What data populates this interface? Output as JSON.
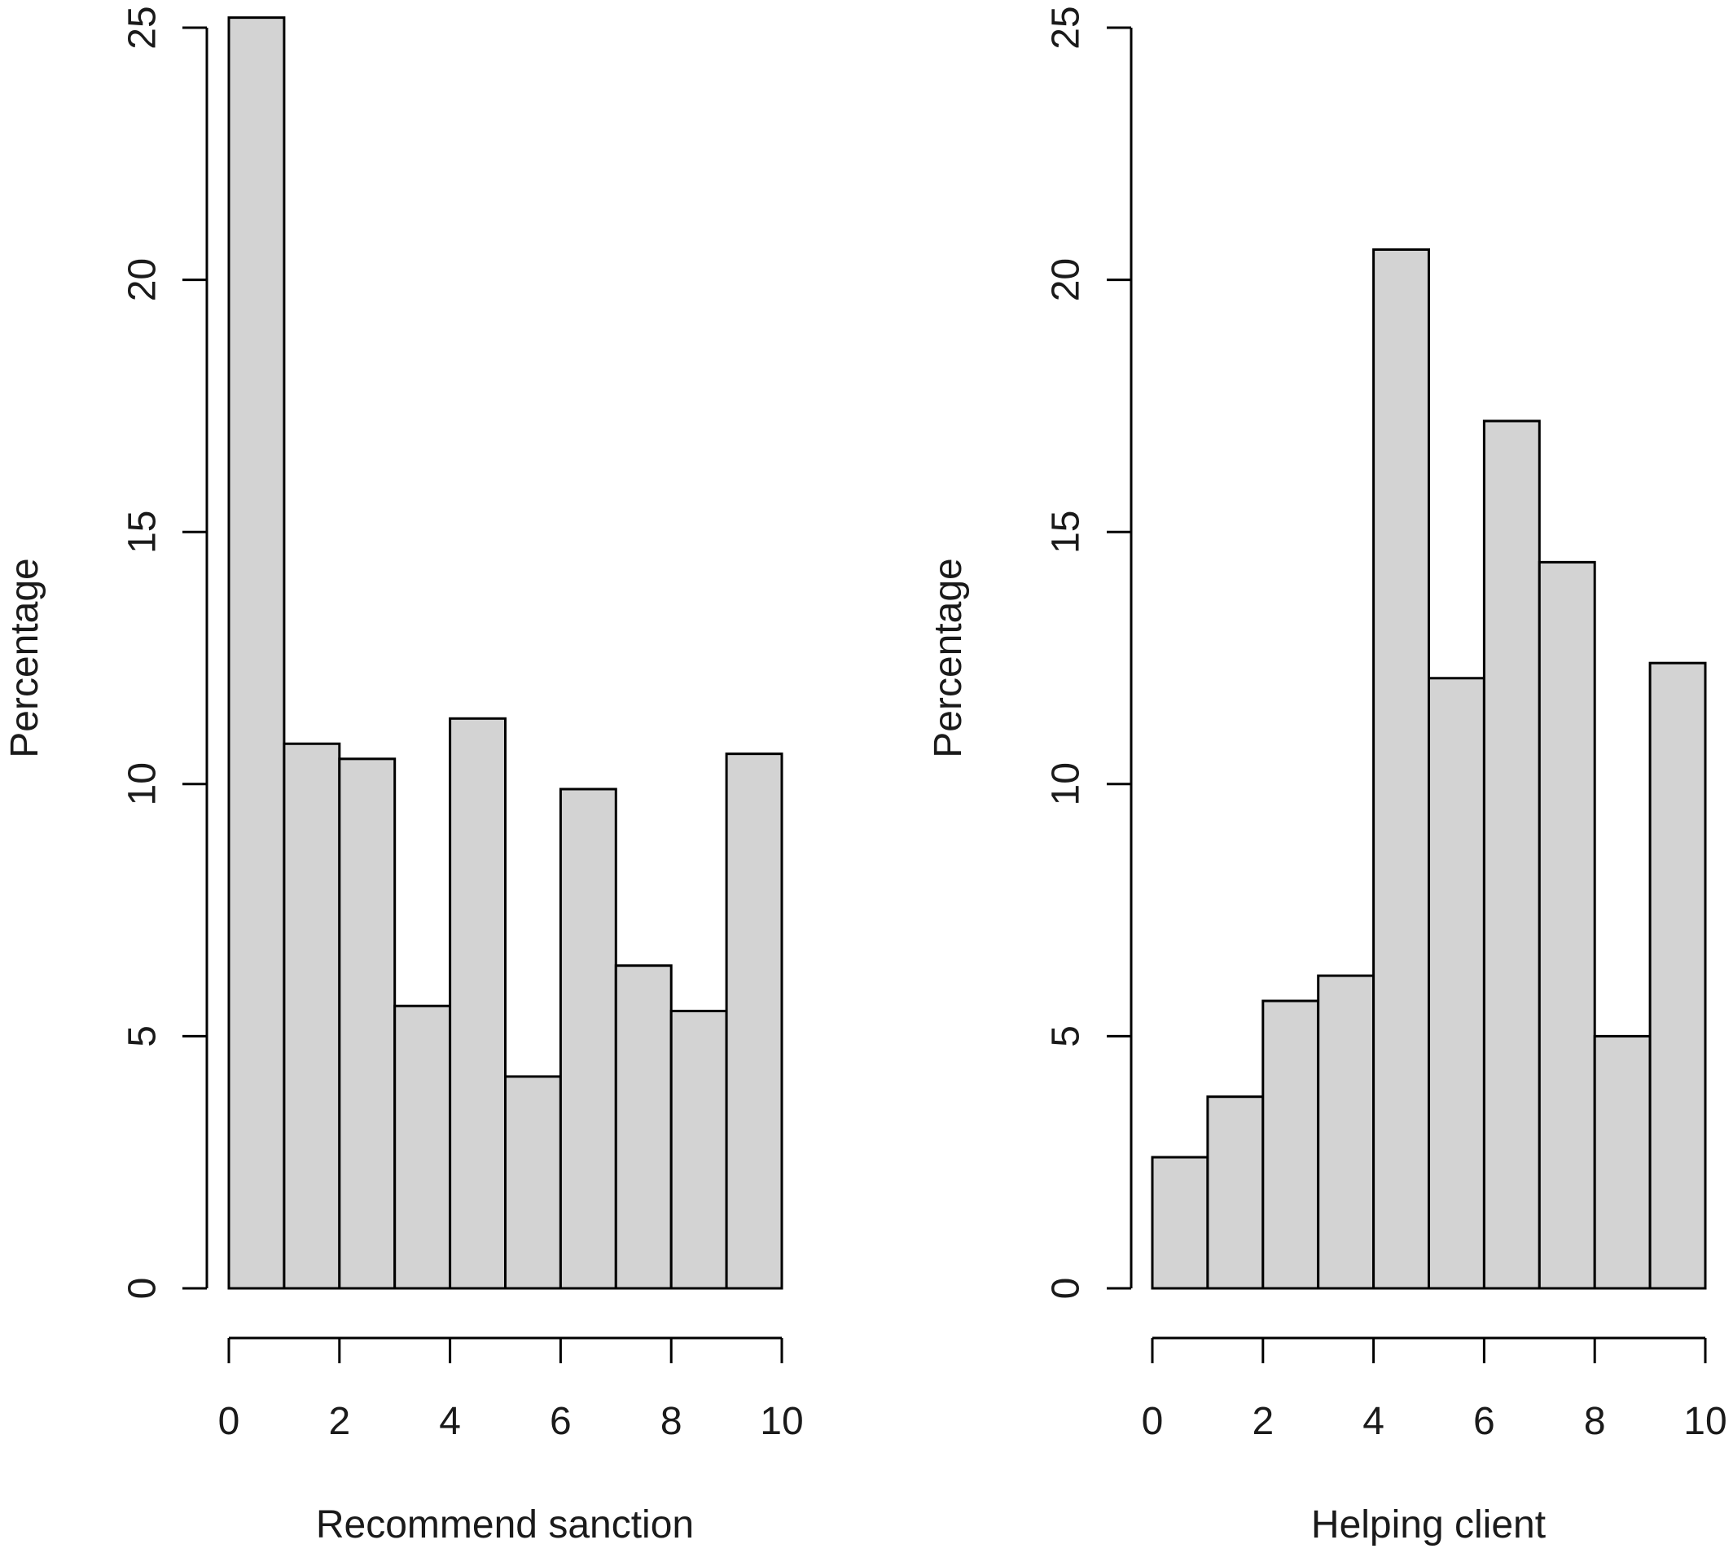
{
  "chart_data": [
    {
      "type": "bar",
      "subtype": "histogram",
      "bin_edges": [
        0,
        1,
        2,
        3,
        4,
        5,
        6,
        7,
        8,
        9,
        10
      ],
      "values": [
        25.2,
        10.8,
        10.5,
        5.6,
        11.3,
        4.2,
        9.9,
        6.4,
        5.5,
        10.6
      ],
      "xlabel": "Recommend sanction",
      "ylabel": "Percentage",
      "xticks": [
        0,
        2,
        4,
        6,
        8,
        10
      ],
      "xtick_labels": [
        "0",
        "2",
        "4",
        "6",
        "8",
        "10"
      ],
      "yticks": [
        0,
        5,
        10,
        15,
        20,
        25
      ],
      "ytick_labels": [
        "0",
        "5",
        "10",
        "15",
        "20",
        "25"
      ],
      "xlim": [
        0,
        10
      ],
      "ylim": [
        0,
        25
      ],
      "grid": false,
      "bar_color": "#d3d3d3",
      "edge_color": "#000000"
    },
    {
      "type": "bar",
      "subtype": "histogram",
      "bin_edges": [
        0,
        1,
        2,
        3,
        4,
        5,
        6,
        7,
        8,
        9,
        10
      ],
      "values": [
        2.6,
        3.8,
        5.7,
        6.2,
        20.6,
        12.1,
        17.2,
        14.4,
        5.0,
        12.4
      ],
      "xlabel": "Helping client",
      "ylabel": "Percentage",
      "xticks": [
        0,
        2,
        4,
        6,
        8,
        10
      ],
      "xtick_labels": [
        "0",
        "2",
        "4",
        "6",
        "8",
        "10"
      ],
      "yticks": [
        0,
        5,
        10,
        15,
        20,
        25
      ],
      "ytick_labels": [
        "0",
        "5",
        "10",
        "15",
        "20",
        "25"
      ],
      "xlim": [
        0,
        10
      ],
      "ylim": [
        0,
        25
      ],
      "grid": false,
      "bar_color": "#d3d3d3",
      "edge_color": "#000000"
    }
  ]
}
